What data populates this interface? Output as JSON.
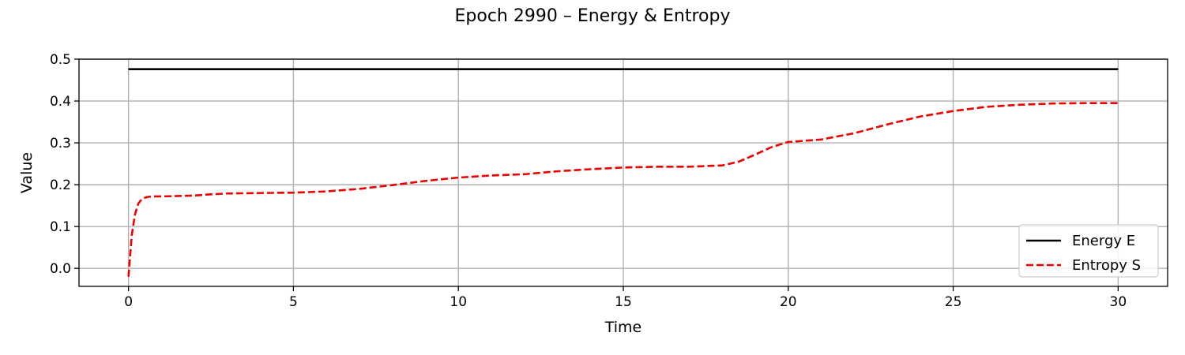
{
  "chart_data": {
    "type": "line",
    "title": "Epoch 2990 – Energy & Entropy",
    "xlabel": "Time",
    "ylabel": "Value",
    "xlim": [
      -1.5,
      31.5
    ],
    "ylim": [
      -0.043,
      0.5
    ],
    "xticks": [
      0,
      5,
      10,
      15,
      20,
      25,
      30
    ],
    "xtick_labels": [
      "0",
      "5",
      "10",
      "15",
      "20",
      "25",
      "30"
    ],
    "yticks": [
      0.0,
      0.1,
      0.2,
      0.3,
      0.4,
      0.5
    ],
    "ytick_labels": [
      "0.0",
      "0.1",
      "0.2",
      "0.3",
      "0.4",
      "0.5"
    ],
    "grid": true,
    "legend_position": "lower-right",
    "series": [
      {
        "name": "Energy E",
        "color": "#000000",
        "style": "solid",
        "x": [
          0,
          30
        ],
        "y": [
          0.476,
          0.476
        ]
      },
      {
        "name": "Entropy S",
        "color": "#ee0000",
        "style": "dashed",
        "x": [
          0,
          0.05,
          0.1,
          0.2,
          0.3,
          0.4,
          0.5,
          0.6,
          0.8,
          1.0,
          1.5,
          2,
          2.5,
          3,
          4,
          5,
          6,
          7,
          8,
          9,
          10,
          11,
          12,
          13,
          14,
          15,
          16,
          17,
          18,
          18.5,
          19,
          19.5,
          20,
          20.5,
          21,
          22,
          23,
          24,
          25,
          26,
          27,
          28,
          29,
          30
        ],
        "y": [
          -0.02,
          0.03,
          0.08,
          0.13,
          0.155,
          0.165,
          0.169,
          0.171,
          0.172,
          0.172,
          0.173,
          0.174,
          0.177,
          0.179,
          0.18,
          0.181,
          0.184,
          0.19,
          0.199,
          0.209,
          0.217,
          0.222,
          0.225,
          0.232,
          0.237,
          0.241,
          0.243,
          0.243,
          0.246,
          0.255,
          0.272,
          0.29,
          0.302,
          0.305,
          0.308,
          0.323,
          0.344,
          0.363,
          0.376,
          0.386,
          0.391,
          0.394,
          0.395,
          0.395
        ]
      }
    ]
  }
}
